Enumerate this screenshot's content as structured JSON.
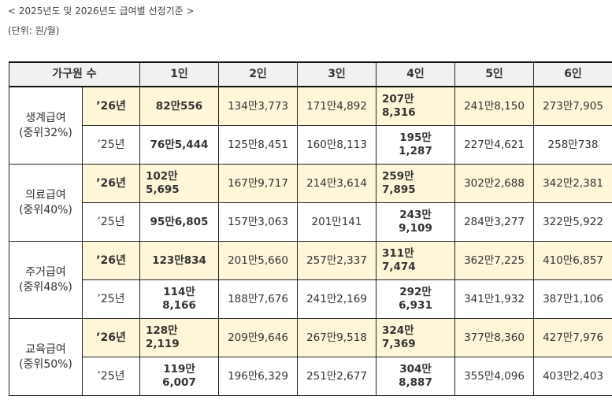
{
  "caption": "< 2025년도 및 2026년도 급여별 선정기준 >",
  "unit": "(단위: 원/월)",
  "headers": [
    "가구원 수",
    "1인",
    "2인",
    "3인",
    "4인",
    "5인",
    "6인"
  ],
  "groups": [
    {
      "name": "생계급여",
      "rate": "(중위32%)",
      "rows": [
        {
          "year": "’26년",
          "values": [
            "82만556",
            "134만3,773",
            "171만4,892",
            "207만\n8,316",
            "241만8,150",
            "273만7,905"
          ]
        },
        {
          "year": "’25년",
          "values": [
            "76만5,444",
            "125만8,451",
            "160만8,113",
            "195만\n1,287",
            "227만4,621",
            "258만738"
          ]
        }
      ]
    },
    {
      "name": "의료급여",
      "rate": "(중위40%)",
      "rows": [
        {
          "year": "’26년",
          "values": [
            "102만\n5,695",
            "167만9,717",
            "214만3,614",
            "259만\n7,895",
            "302만2,688",
            "342만2,381"
          ]
        },
        {
          "year": "’25년",
          "values": [
            "95만6,805",
            "157만3,063",
            "201만141",
            "243만\n9,109",
            "284만3,277",
            "322만5,922"
          ]
        }
      ]
    },
    {
      "name": "주거급여",
      "rate": "(중위48%)",
      "rows": [
        {
          "year": "’26년",
          "values": [
            "123만834",
            "201만5,660",
            "257만2,337",
            "311만\n7,474",
            "362만7,225",
            "410만6,857"
          ]
        },
        {
          "year": "’25년",
          "values": [
            "114만\n8,166",
            "188만7,676",
            "241만2,169",
            "292만\n6,931",
            "341만1,932",
            "387만1,106"
          ]
        }
      ]
    },
    {
      "name": "교육급여",
      "rate": "(중위50%)",
      "rows": [
        {
          "year": "’26년",
          "values": [
            "128만\n2,119",
            "209만9,646",
            "267만9,518",
            "324만\n7,369",
            "377만8,360",
            "427만7,976"
          ]
        },
        {
          "year": "’25년",
          "values": [
            "119만\n6,007",
            "196만6,329",
            "251만2,677",
            "304만\n8,887",
            "355만4,096",
            "403만2,403"
          ]
        }
      ]
    }
  ]
}
